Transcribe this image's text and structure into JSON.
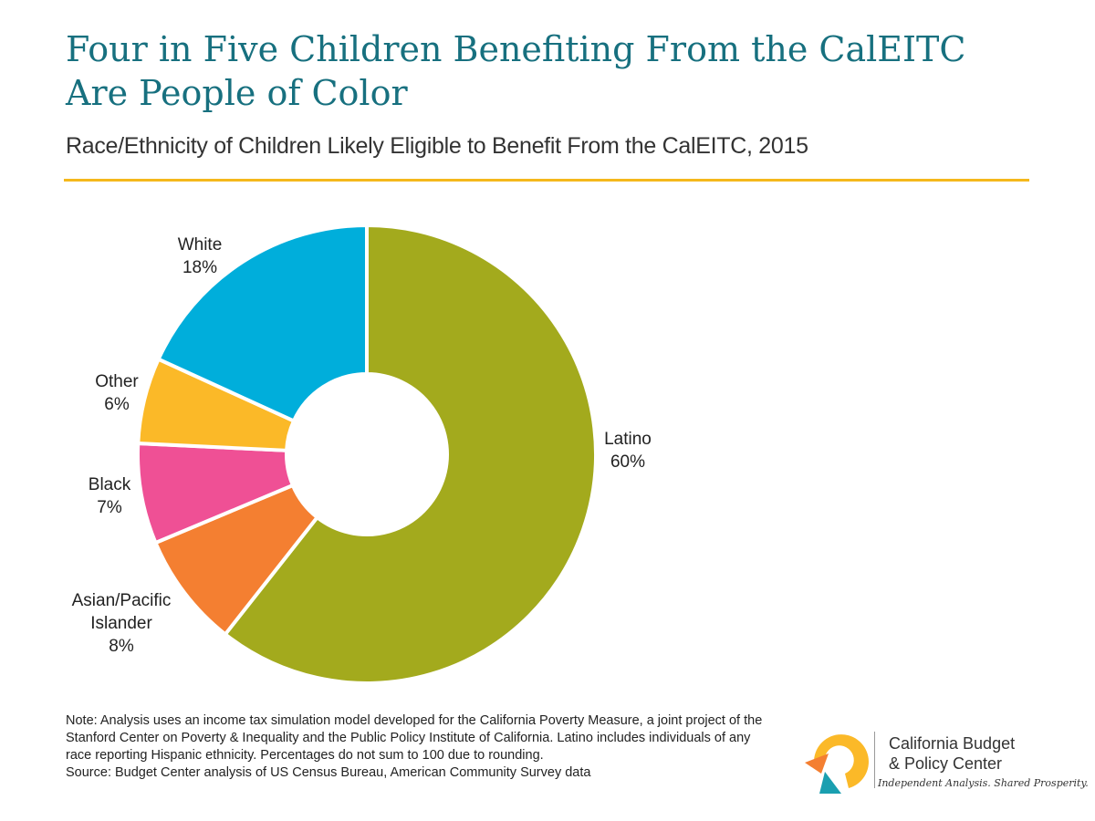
{
  "header": {
    "title": "Four in Five Children Benefiting From the CalEITC Are People of Color",
    "subtitle": "Race/Ethnicity of Children Likely Eligible to Benefit From the CalEITC, 2015"
  },
  "chart_data": {
    "type": "pie",
    "title": "Four in Five Children Benefiting From the CalEITC Are People of Color",
    "subtitle": "Race/Ethnicity of Children Likely Eligible to Benefit From the CalEITC, 2015",
    "donut": true,
    "slices": [
      {
        "name": "Latino",
        "value": 60,
        "label": "60%",
        "color": "#a3aa1d"
      },
      {
        "name": "Asian/Pacific Islander",
        "value": 8,
        "label": "8%",
        "color": "#f47f31"
      },
      {
        "name": "Black",
        "value": 7,
        "label": "7%",
        "color": "#ef5095"
      },
      {
        "name": "Other",
        "value": 6,
        "label": "6%",
        "color": "#fbb928"
      },
      {
        "name": "White",
        "value": 18,
        "label": "18%",
        "color": "#00aedb"
      }
    ]
  },
  "notes": {
    "note": "Note: Analysis uses an income tax simulation model developed for the California Poverty Measure, a joint project of the Stanford Center on Poverty & Inequality and the Public Policy Institute of California. Latino includes individuals of any race reporting Hispanic ethnicity. Percentages do not sum to 100 due to rounding.",
    "source": "Source: Budget Center analysis of US Census Bureau, American Community Survey data"
  },
  "logo": {
    "name_line1": "California Budget",
    "name_line2": "& Policy Center",
    "tagline": "Independent Analysis. Shared Prosperity.",
    "colors": {
      "yellow": "#fbb928",
      "orange": "#f47f31",
      "teal": "#1a9fb0"
    }
  }
}
